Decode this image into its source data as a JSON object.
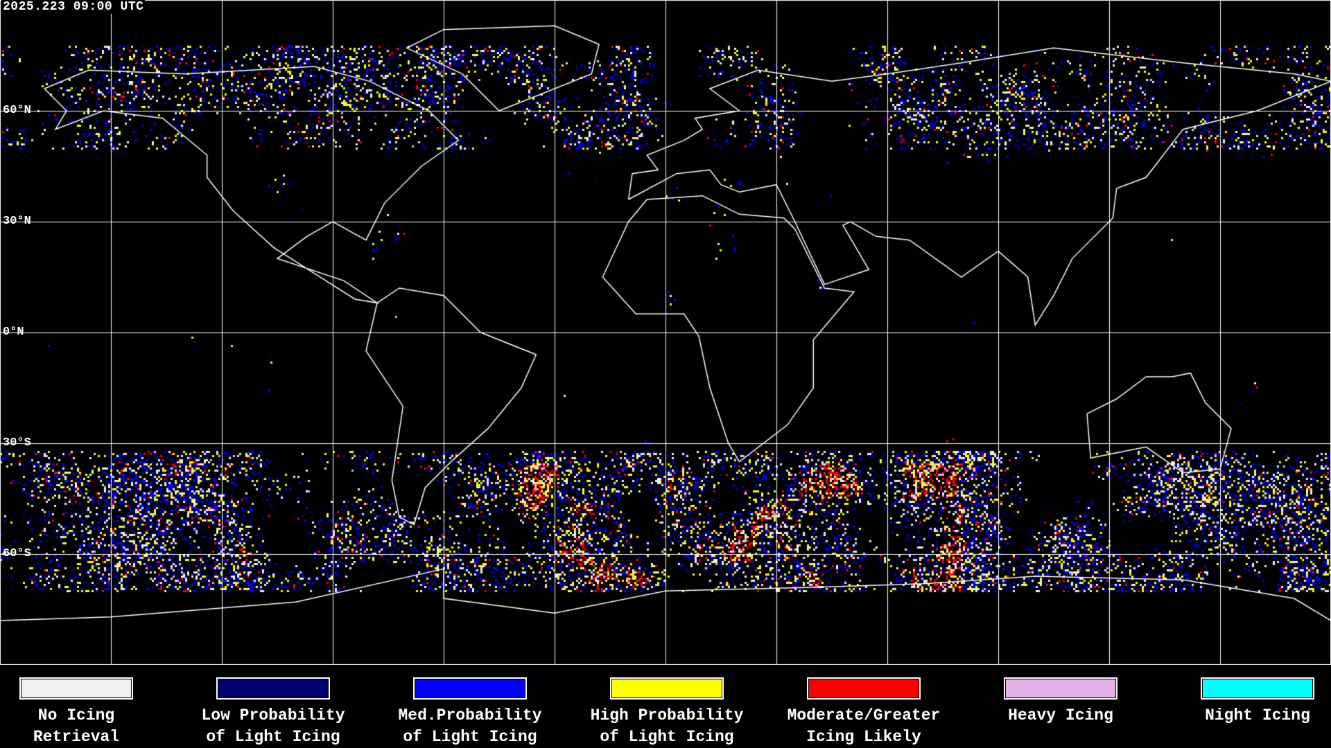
{
  "header": {
    "timestamp": "2025.223 09:00 UTC"
  },
  "map": {
    "projection": "equirectangular",
    "grid_spacing_degrees": 30,
    "lat_labels": [
      "60°N",
      "30°N",
      "0°N",
      "30°S",
      "60°S"
    ],
    "background_color": "#000000",
    "coastline_color": "#ffffff",
    "grid_color": "#ffffff"
  },
  "legend": {
    "items": [
      {
        "line1": "No Icing",
        "line2": "Retrieval",
        "color": "#f0f0f0"
      },
      {
        "line1": "Low Probability",
        "line2": "of Light Icing",
        "color": "#000070"
      },
      {
        "line1": "Med.Probability",
        "line2": "of Light Icing",
        "color": "#0000ff"
      },
      {
        "line1": "High Probability",
        "line2": "of Light Icing",
        "color": "#ffff00"
      },
      {
        "line1": "Moderate/Greater",
        "line2": "Icing Likely",
        "color": "#ff0000"
      },
      {
        "line1": "Heavy Icing",
        "line2": "",
        "color": "#e8b0e8"
      },
      {
        "line1": "Night Icing",
        "line2": "",
        "color": "#00ffff"
      }
    ]
  }
}
